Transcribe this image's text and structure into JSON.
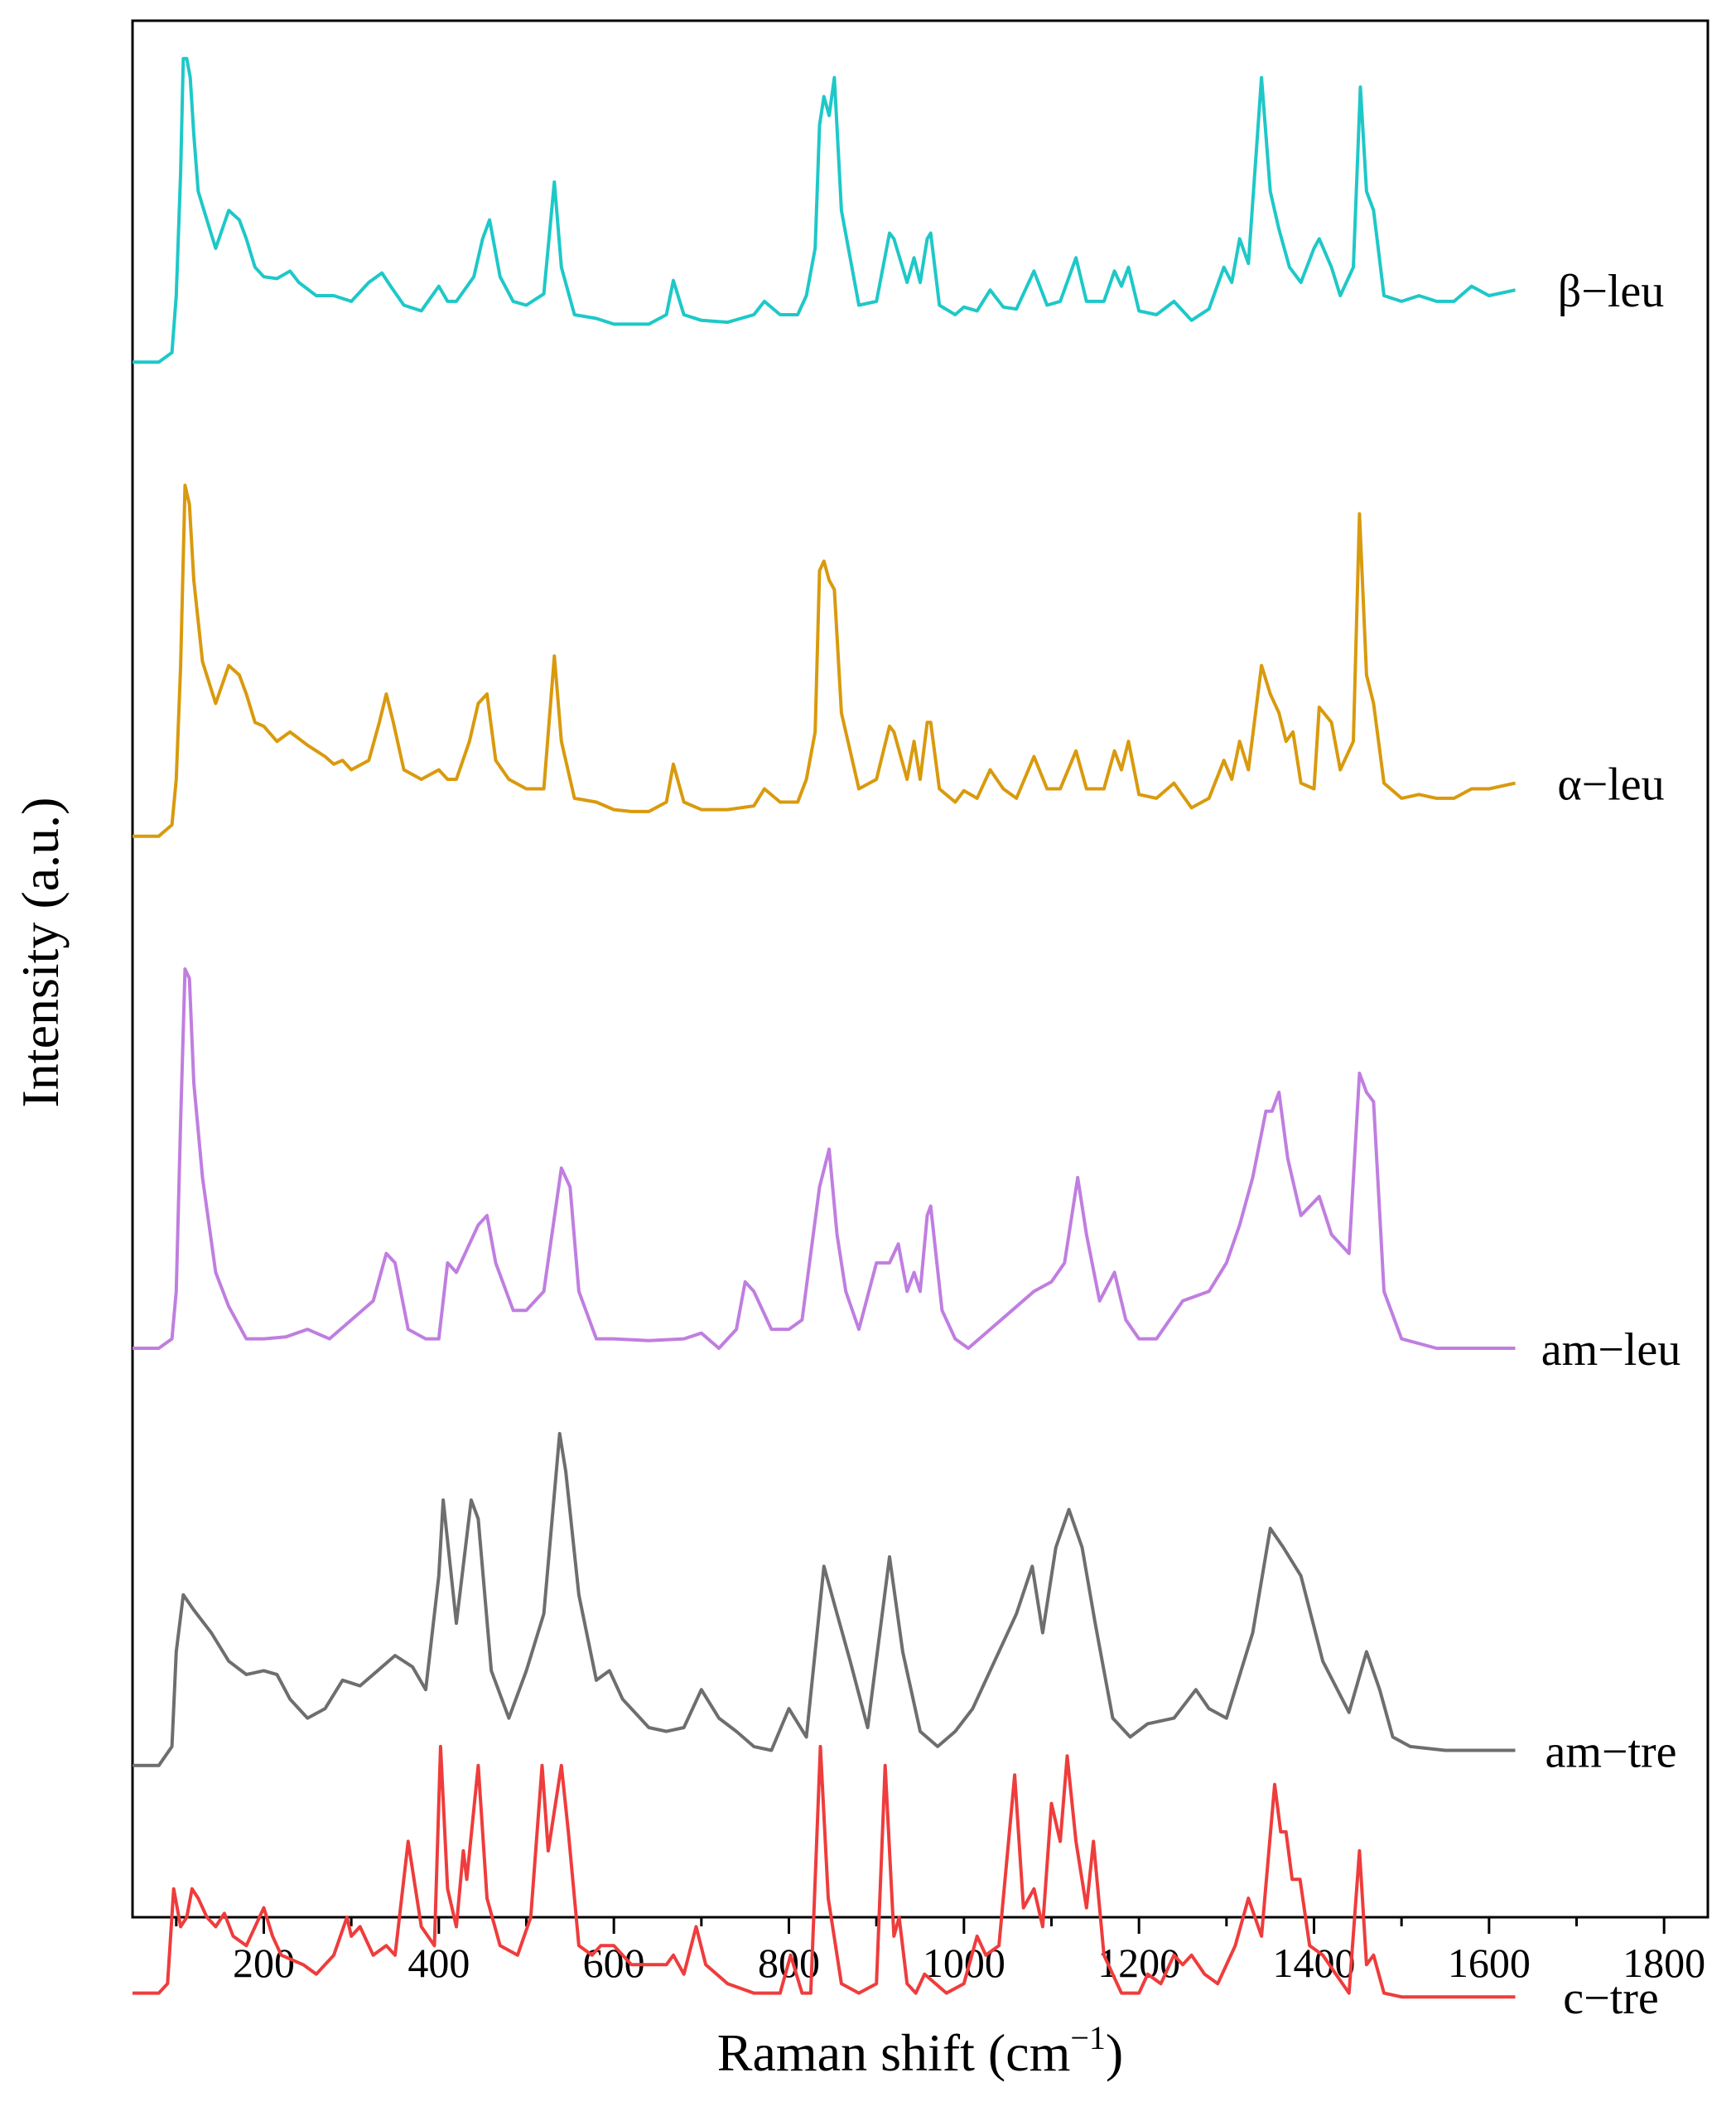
{
  "chart_data": {
    "type": "line",
    "title": "",
    "xlabel": "Raman shift (cm",
    "xlabel_sup": "−1",
    "xlabel_close": ")",
    "ylabel": "Intensity (a.u.)",
    "xlim": [
      50,
      1850
    ],
    "ylim": [
      0,
      10
    ],
    "xticks": [
      200,
      400,
      600,
      800,
      1000,
      1200,
      1400,
      1600,
      1800
    ],
    "xtick_labels": [
      "200",
      "400",
      "600",
      "800",
      "1000",
      "1200",
      "1400",
      "1600",
      "1800"
    ],
    "y_ticks_shown": false,
    "offset_note": "spectra vertically stacked; y values are offset normalized intensity",
    "series": [
      {
        "name": "β−leu",
        "color": "#1ec8c8",
        "x": [
          50,
          80,
          95,
          100,
          105,
          108,
          112,
          116,
          120,
          125,
          135,
          145,
          160,
          172,
          180,
          190,
          200,
          215,
          230,
          240,
          260,
          280,
          300,
          320,
          335,
          345,
          360,
          380,
          400,
          410,
          420,
          440,
          450,
          458,
          470,
          485,
          500,
          520,
          532,
          540,
          555,
          580,
          600,
          620,
          640,
          660,
          668,
          680,
          700,
          730,
          760,
          772,
          790,
          810,
          820,
          830,
          835,
          840,
          846,
          852,
          860,
          880,
          900,
          915,
          920,
          935,
          943,
          950,
          958,
          962,
          972,
          990,
          1000,
          1015,
          1030,
          1045,
          1060,
          1080,
          1095,
          1110,
          1128,
          1140,
          1160,
          1172,
          1180,
          1188,
          1200,
          1220,
          1240,
          1260,
          1280,
          1297,
          1306,
          1315,
          1325,
          1340,
          1350,
          1360,
          1372,
          1385,
          1400,
          1406,
          1420,
          1430,
          1445,
          1453,
          1460,
          1468,
          1480,
          1500,
          1520,
          1540,
          1560,
          1580,
          1600,
          1630
        ],
        "y": [
          8.2,
          8.2,
          8.25,
          8.55,
          9.2,
          9.8,
          9.8,
          9.7,
          9.4,
          9.1,
          8.95,
          8.8,
          9.0,
          8.95,
          8.85,
          8.7,
          8.65,
          8.64,
          8.68,
          8.62,
          8.55,
          8.55,
          8.52,
          8.62,
          8.67,
          8.6,
          8.5,
          8.47,
          8.6,
          8.52,
          8.52,
          8.65,
          8.85,
          8.95,
          8.65,
          8.52,
          8.5,
          8.56,
          9.15,
          8.7,
          8.45,
          8.43,
          8.4,
          8.4,
          8.4,
          8.45,
          8.63,
          8.45,
          8.42,
          8.41,
          8.45,
          8.52,
          8.45,
          8.45,
          8.55,
          8.8,
          9.45,
          9.6,
          9.5,
          9.7,
          9.0,
          8.5,
          8.52,
          8.88,
          8.85,
          8.62,
          8.75,
          8.62,
          8.85,
          8.88,
          8.5,
          8.45,
          8.49,
          8.47,
          8.58,
          8.49,
          8.48,
          8.68,
          8.5,
          8.52,
          8.75,
          8.52,
          8.52,
          8.68,
          8.6,
          8.7,
          8.47,
          8.45,
          8.52,
          8.42,
          8.48,
          8.7,
          8.62,
          8.85,
          8.72,
          9.7,
          9.1,
          8.9,
          8.7,
          8.62,
          8.8,
          8.85,
          8.7,
          8.55,
          8.7,
          9.65,
          9.1,
          9.0,
          8.55,
          8.52,
          8.55,
          8.52,
          8.52,
          8.6,
          8.55,
          8.58
        ]
      },
      {
        "name": "α−leu",
        "color": "#d99a0d",
        "x": [
          50,
          80,
          95,
          100,
          105,
          110,
          115,
          120,
          130,
          145,
          160,
          172,
          180,
          190,
          200,
          215,
          230,
          250,
          270,
          280,
          290,
          300,
          320,
          332,
          340,
          348,
          360,
          380,
          400,
          410,
          420,
          435,
          445,
          455,
          465,
          480,
          500,
          520,
          532,
          540,
          555,
          580,
          600,
          620,
          640,
          660,
          668,
          680,
          700,
          730,
          760,
          772,
          790,
          810,
          820,
          830,
          835,
          840,
          846,
          852,
          860,
          880,
          900,
          915,
          920,
          935,
          943,
          950,
          958,
          962,
          972,
          990,
          1000,
          1015,
          1030,
          1045,
          1060,
          1080,
          1095,
          1110,
          1128,
          1140,
          1160,
          1172,
          1180,
          1188,
          1200,
          1220,
          1240,
          1260,
          1280,
          1297,
          1306,
          1315,
          1325,
          1340,
          1350,
          1360,
          1368,
          1376,
          1385,
          1400,
          1406,
          1420,
          1430,
          1445,
          1452,
          1460,
          1468,
          1480,
          1500,
          1520,
          1540,
          1560,
          1580,
          1600,
          1630
        ],
        "y": [
          5.7,
          5.7,
          5.76,
          6.0,
          6.6,
          7.55,
          7.45,
          7.05,
          6.62,
          6.4,
          6.6,
          6.55,
          6.45,
          6.3,
          6.28,
          6.2,
          6.25,
          6.18,
          6.12,
          6.08,
          6.1,
          6.05,
          6.1,
          6.3,
          6.45,
          6.3,
          6.05,
          6.0,
          6.05,
          6.0,
          6.0,
          6.2,
          6.4,
          6.45,
          6.1,
          6.0,
          5.95,
          5.95,
          6.65,
          6.2,
          5.9,
          5.88,
          5.84,
          5.83,
          5.83,
          5.88,
          6.08,
          5.88,
          5.84,
          5.84,
          5.86,
          5.95,
          5.88,
          5.88,
          6.0,
          6.25,
          7.1,
          7.15,
          7.05,
          7.0,
          6.35,
          5.95,
          6.0,
          6.28,
          6.25,
          6.0,
          6.2,
          6.0,
          6.3,
          6.3,
          5.95,
          5.88,
          5.94,
          5.9,
          6.05,
          5.95,
          5.9,
          6.12,
          5.95,
          5.95,
          6.15,
          5.95,
          5.95,
          6.15,
          6.05,
          6.2,
          5.92,
          5.9,
          5.98,
          5.85,
          5.9,
          6.1,
          6.0,
          6.2,
          6.05,
          6.6,
          6.45,
          6.35,
          6.2,
          6.25,
          5.98,
          5.95,
          6.38,
          6.3,
          6.05,
          6.2,
          7.4,
          6.55,
          6.4,
          5.98,
          5.9,
          5.92,
          5.9,
          5.9,
          5.95,
          5.95,
          5.98
        ]
      },
      {
        "name": "am−leu",
        "color": "#c07ee0",
        "x": [
          50,
          80,
          95,
          100,
          105,
          110,
          115,
          120,
          130,
          145,
          160,
          180,
          200,
          225,
          250,
          275,
          300,
          325,
          340,
          350,
          365,
          385,
          400,
          410,
          420,
          435,
          445,
          455,
          465,
          485,
          500,
          520,
          540,
          550,
          560,
          580,
          600,
          640,
          680,
          700,
          720,
          740,
          750,
          760,
          780,
          800,
          815,
          825,
          835,
          846,
          855,
          865,
          880,
          900,
          915,
          925,
          935,
          943,
          950,
          958,
          962,
          975,
          990,
          1005,
          1030,
          1055,
          1080,
          1100,
          1115,
          1130,
          1140,
          1155,
          1172,
          1185,
          1200,
          1220,
          1250,
          1280,
          1300,
          1315,
          1330,
          1345,
          1352,
          1360,
          1370,
          1385,
          1406,
          1420,
          1440,
          1452,
          1460,
          1468,
          1480,
          1500,
          1540,
          1580,
          1630
        ],
        "y": [
          3.0,
          3.0,
          3.05,
          3.3,
          4.2,
          5.0,
          4.95,
          4.4,
          3.9,
          3.4,
          3.22,
          3.05,
          3.05,
          3.06,
          3.1,
          3.05,
          3.15,
          3.25,
          3.5,
          3.45,
          3.1,
          3.05,
          3.05,
          3.45,
          3.4,
          3.55,
          3.65,
          3.7,
          3.45,
          3.2,
          3.2,
          3.3,
          3.95,
          3.85,
          3.3,
          3.05,
          3.05,
          3.04,
          3.05,
          3.08,
          3.0,
          3.1,
          3.35,
          3.3,
          3.1,
          3.1,
          3.15,
          3.5,
          3.85,
          4.05,
          3.6,
          3.3,
          3.1,
          3.45,
          3.45,
          3.55,
          3.3,
          3.4,
          3.3,
          3.7,
          3.75,
          3.2,
          3.05,
          3.0,
          3.1,
          3.2,
          3.3,
          3.35,
          3.45,
          3.9,
          3.6,
          3.25,
          3.4,
          3.15,
          3.05,
          3.05,
          3.25,
          3.3,
          3.45,
          3.65,
          3.9,
          4.25,
          4.25,
          4.35,
          4.0,
          3.7,
          3.8,
          3.6,
          3.5,
          4.45,
          4.35,
          4.3,
          3.3,
          3.05,
          3.0,
          3.0,
          3.0
        ]
      },
      {
        "name": "am−tre",
        "color": "#6e6e6e",
        "x": [
          50,
          80,
          95,
          100,
          108,
          120,
          140,
          160,
          180,
          200,
          215,
          230,
          250,
          270,
          290,
          310,
          330,
          350,
          370,
          385,
          400,
          405,
          420,
          437,
          445,
          460,
          480,
          500,
          520,
          538,
          545,
          560,
          580,
          595,
          610,
          640,
          660,
          680,
          700,
          720,
          740,
          760,
          780,
          800,
          820,
          840,
          855,
          870,
          890,
          915,
          930,
          950,
          970,
          990,
          1010,
          1030,
          1050,
          1060,
          1078,
          1090,
          1105,
          1120,
          1135,
          1150,
          1170,
          1190,
          1210,
          1240,
          1265,
          1280,
          1300,
          1330,
          1350,
          1365,
          1385,
          1410,
          1440,
          1460,
          1475,
          1490,
          1510,
          1550,
          1600,
          1630
        ],
        "y": [
          0.8,
          0.8,
          0.9,
          1.4,
          1.7,
          1.62,
          1.5,
          1.35,
          1.28,
          1.3,
          1.28,
          1.15,
          1.05,
          1.1,
          1.25,
          1.22,
          1.3,
          1.38,
          1.32,
          1.2,
          1.8,
          2.2,
          1.55,
          2.2,
          2.1,
          1.3,
          1.05,
          1.3,
          1.6,
          2.55,
          2.35,
          1.7,
          1.25,
          1.3,
          1.15,
          1.0,
          0.98,
          1.0,
          1.2,
          1.05,
          0.98,
          0.9,
          0.88,
          1.1,
          0.95,
          1.85,
          1.6,
          1.35,
          1.0,
          1.9,
          1.4,
          0.98,
          0.9,
          0.98,
          1.1,
          1.3,
          1.5,
          1.6,
          1.85,
          1.5,
          1.95,
          2.15,
          1.95,
          1.55,
          1.05,
          0.95,
          1.02,
          1.05,
          1.2,
          1.1,
          1.05,
          1.5,
          2.05,
          1.95,
          1.8,
          1.35,
          1.08,
          1.4,
          1.2,
          0.95,
          0.9,
          0.88,
          0.88,
          0.88
        ]
      },
      {
        "name": "c−tre",
        "color": "#ef3c3c",
        "x": [
          50,
          80,
          90,
          97,
          105,
          112,
          118,
          125,
          135,
          145,
          155,
          165,
          180,
          200,
          210,
          220,
          245,
          260,
          280,
          295,
          300,
          310,
          325,
          340,
          350,
          365,
          380,
          395,
          402,
          410,
          420,
          428,
          432,
          445,
          455,
          470,
          490,
          505,
          518,
          525,
          540,
          548,
          560,
          575,
          585,
          600,
          620,
          660,
          668,
          680,
          694,
          705,
          730,
          760,
          790,
          802,
          815,
          825,
          836,
          845,
          860,
          880,
          900,
          910,
          920,
          926,
          935,
          945,
          955,
          980,
          1000,
          1015,
          1025,
          1040,
          1058,
          1068,
          1080,
          1090,
          1100,
          1110,
          1118,
          1128,
          1140,
          1148,
          1160,
          1180,
          1200,
          1210,
          1225,
          1240,
          1250,
          1260,
          1275,
          1290,
          1310,
          1325,
          1340,
          1355,
          1362,
          1368,
          1375,
          1384,
          1395,
          1410,
          1425,
          1440,
          1452,
          1460,
          1468,
          1480,
          1500,
          1550,
          1600,
          1630
        ],
        "y": [
          -0.4,
          -0.4,
          -0.35,
          0.15,
          -0.05,
          0.0,
          0.15,
          0.1,
          0.0,
          -0.05,
          0.02,
          -0.1,
          -0.15,
          0.05,
          -0.1,
          -0.2,
          -0.25,
          -0.3,
          -0.2,
          0.0,
          -0.1,
          -0.05,
          -0.2,
          -0.15,
          -0.2,
          0.4,
          -0.05,
          -0.15,
          0.9,
          0.15,
          -0.05,
          0.35,
          0.2,
          0.8,
          0.1,
          -0.15,
          -0.2,
          0.0,
          0.8,
          0.35,
          0.8,
          0.45,
          -0.15,
          -0.2,
          -0.15,
          -0.15,
          -0.25,
          -0.25,
          -0.2,
          -0.3,
          -0.05,
          -0.25,
          -0.35,
          -0.4,
          -0.4,
          -0.2,
          -0.4,
          -0.4,
          0.9,
          0.1,
          -0.35,
          -0.4,
          -0.35,
          0.8,
          -0.1,
          0.0,
          -0.35,
          -0.4,
          -0.3,
          -0.4,
          -0.35,
          -0.1,
          -0.2,
          -0.15,
          0.75,
          0.05,
          0.15,
          -0.05,
          0.6,
          0.4,
          0.85,
          0.4,
          0.05,
          0.4,
          -0.2,
          -0.4,
          -0.4,
          -0.3,
          -0.35,
          -0.2,
          -0.25,
          -0.2,
          -0.3,
          -0.35,
          -0.15,
          0.1,
          -0.1,
          0.7,
          0.45,
          0.45,
          0.2,
          0.2,
          -0.15,
          -0.2,
          -0.3,
          -0.4,
          0.35,
          -0.25,
          -0.2,
          -0.4,
          -0.42,
          -0.42,
          -0.42,
          -0.42
        ]
      }
    ]
  }
}
